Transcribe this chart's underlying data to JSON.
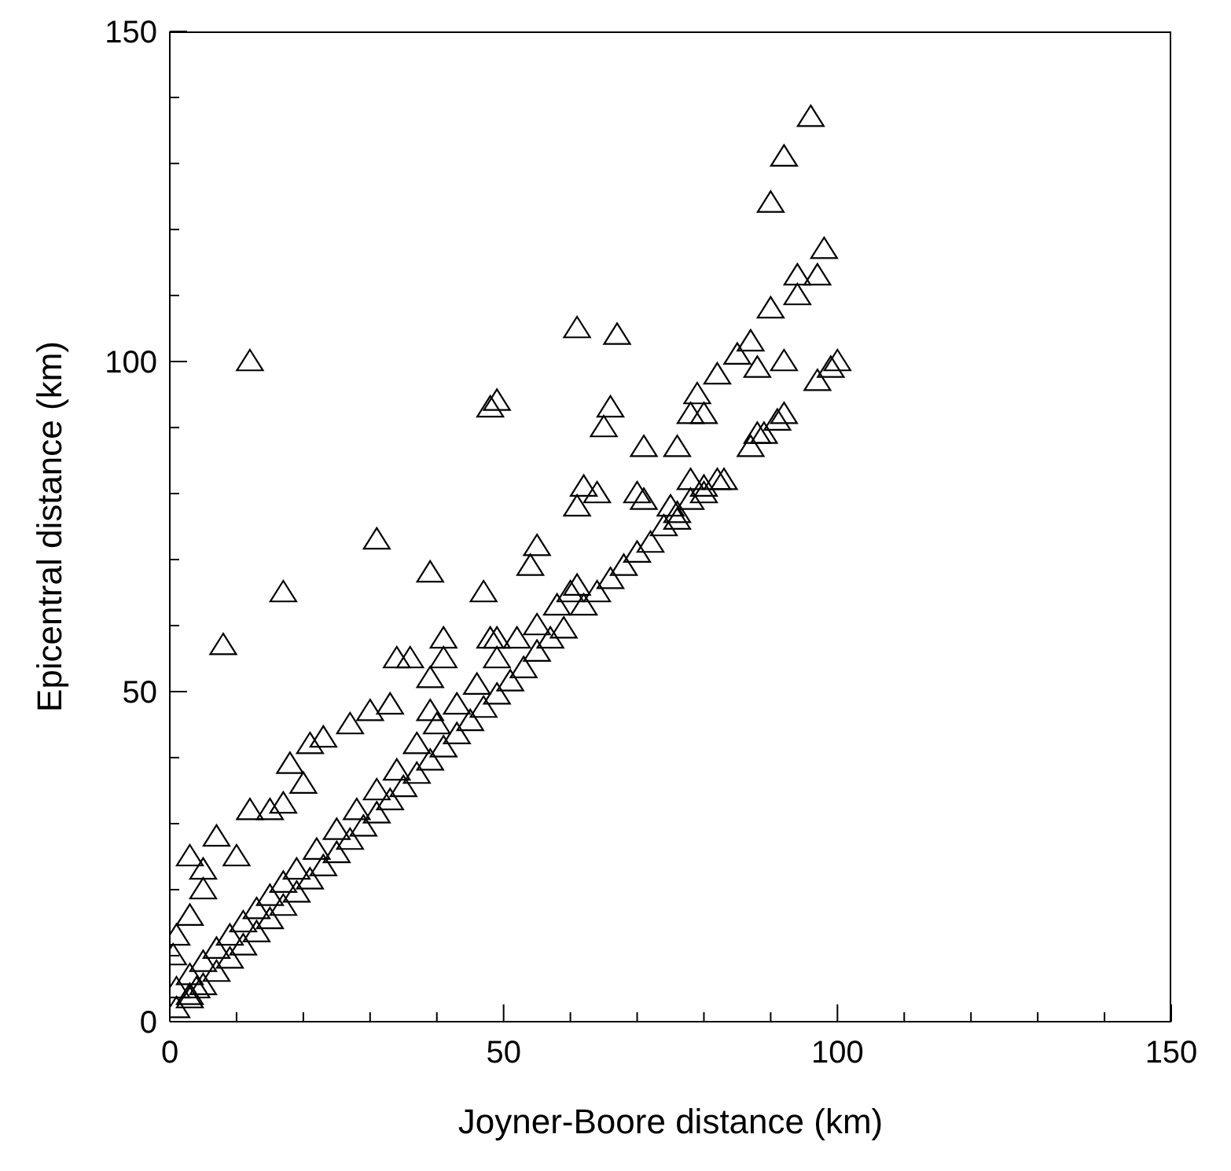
{
  "chart_data": {
    "type": "scatter",
    "xlabel": "Joyner-Boore distance (km)",
    "ylabel": "Epicentral distance (km)",
    "xlim": [
      0,
      150
    ],
    "ylim": [
      0,
      150
    ],
    "xticks": [
      0,
      {
        "value": 10,
        "label": null
      },
      {
        "value": 20,
        "label": null
      },
      {
        "value": 30,
        "label": null
      },
      {
        "value": 40,
        "label": null
      },
      50,
      {
        "value": 60,
        "label": null
      },
      {
        "value": 70,
        "label": null
      },
      {
        "value": 80,
        "label": null
      },
      {
        "value": 90,
        "label": null
      },
      100,
      {
        "value": 110,
        "label": null
      },
      {
        "value": 120,
        "label": null
      },
      {
        "value": 130,
        "label": null
      },
      {
        "value": 140,
        "label": null
      },
      150
    ],
    "yticks": [
      0,
      {
        "value": 10,
        "label": null
      },
      {
        "value": 20,
        "label": null
      },
      {
        "value": 30,
        "label": null
      },
      {
        "value": 40,
        "label": null
      },
      50,
      {
        "value": 60,
        "label": null
      },
      {
        "value": 70,
        "label": null
      },
      {
        "value": 80,
        "label": null
      },
      {
        "value": 90,
        "label": null
      },
      100,
      {
        "value": 110,
        "label": null
      },
      {
        "value": 120,
        "label": null
      },
      {
        "value": 130,
        "label": null
      },
      {
        "value": 140,
        "label": null
      },
      150
    ],
    "marker": "triangle",
    "grid": false,
    "series": [
      {
        "color": "#000000",
        "x": [
          1,
          3,
          5,
          7,
          9,
          11,
          13,
          15,
          17,
          19,
          21,
          23,
          25,
          27,
          29,
          31,
          33,
          35,
          37,
          39,
          41,
          43,
          45,
          47,
          49,
          51,
          53,
          55,
          57,
          59,
          62,
          64,
          66,
          68,
          70,
          72,
          74,
          76,
          78,
          80,
          82,
          87,
          89,
          91,
          92,
          97,
          99,
          100,
          3,
          5,
          7,
          9,
          11,
          13,
          15,
          17,
          19,
          22,
          25,
          28,
          31,
          34,
          37,
          40,
          43,
          46,
          49,
          52,
          55,
          58,
          60,
          12,
          8,
          17,
          31,
          39,
          47,
          48,
          49,
          61,
          67,
          55,
          54,
          34,
          36,
          41,
          41,
          39,
          39,
          30,
          33,
          27,
          21,
          23,
          18,
          20,
          12,
          15,
          17,
          7,
          3,
          5,
          10,
          5,
          3,
          1,
          0.5,
          3,
          1,
          4,
          62,
          64,
          61,
          61,
          66,
          65,
          71,
          71,
          70,
          76,
          78,
          79,
          80,
          80,
          78,
          75,
          76,
          82,
          85,
          87,
          88,
          90,
          90,
          92,
          96,
          94,
          97,
          98,
          94,
          92,
          88,
          83,
          49,
          48
        ],
        "values": [
          2,
          3.5,
          5.5,
          7.5,
          9.5,
          11.5,
          13.5,
          15.5,
          17.5,
          19.5,
          21.5,
          23.5,
          25.5,
          27.5,
          29.5,
          31.5,
          33.5,
          35.5,
          37.5,
          39.5,
          41.5,
          43.5,
          45.5,
          47.5,
          49.5,
          51.5,
          53.5,
          56,
          58,
          59.5,
          63,
          65,
          67,
          69,
          71,
          72.5,
          75,
          77,
          79,
          81,
          82,
          87,
          89,
          91,
          92,
          97,
          99,
          100,
          7,
          9,
          11,
          13,
          15,
          17,
          19,
          21,
          23,
          26,
          29,
          32,
          35,
          38,
          42,
          45,
          48,
          51,
          55,
          58,
          60,
          63,
          65,
          100,
          57,
          65,
          73,
          68,
          65,
          93,
          94,
          105,
          104,
          72,
          69,
          55,
          55,
          58,
          55,
          52,
          47,
          47,
          48,
          45,
          42,
          43,
          39,
          36,
          32,
          32,
          33,
          28,
          25,
          23,
          25,
          20,
          16,
          13,
          10,
          4,
          5,
          5,
          81,
          80,
          78,
          66,
          93,
          90,
          87,
          79,
          80,
          87,
          92,
          95,
          92,
          80,
          82,
          78,
          76,
          98,
          101,
          103,
          99,
          108,
          124,
          131,
          137,
          113,
          113,
          117,
          110,
          100,
          89,
          82,
          58,
          58
        ]
      }
    ]
  }
}
